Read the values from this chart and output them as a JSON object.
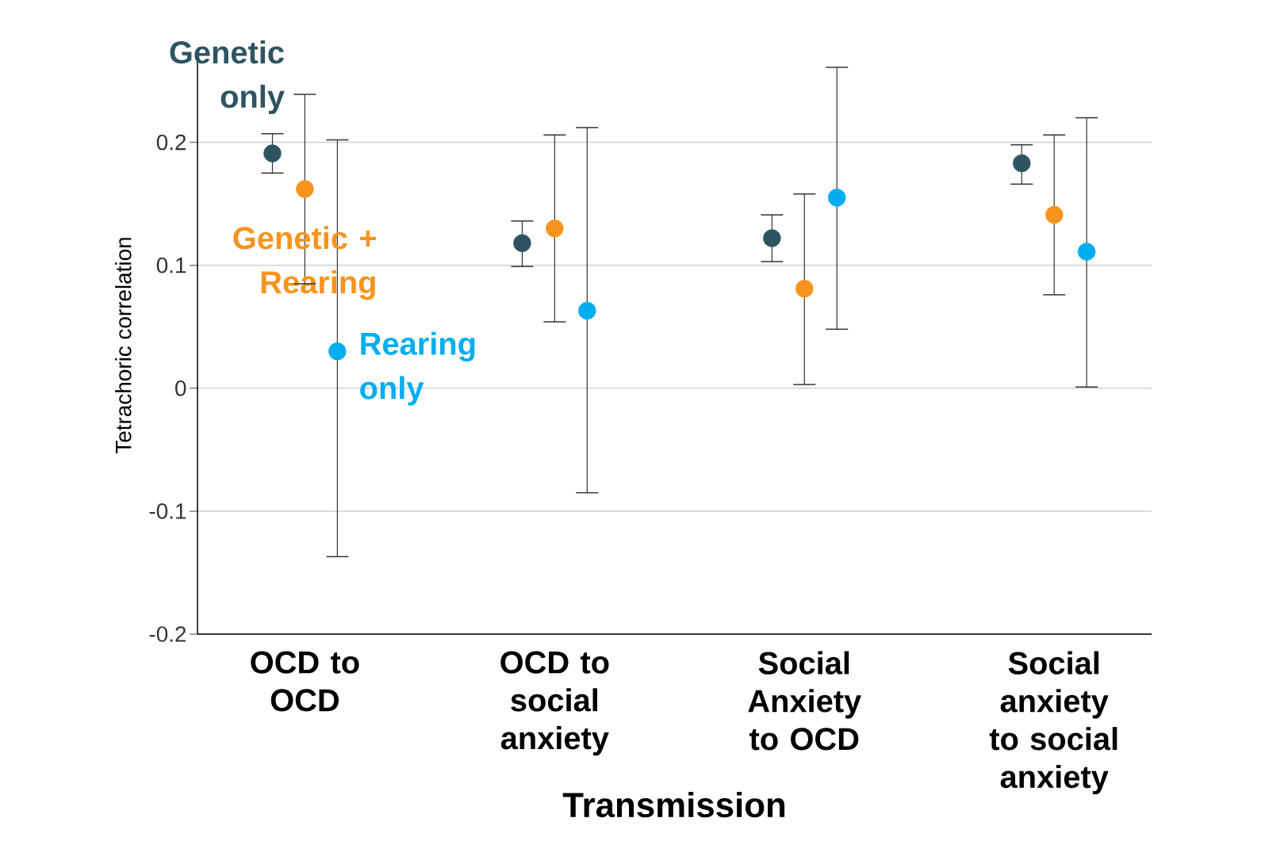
{
  "chart_data": {
    "type": "scatter",
    "xlabel": "Transmission",
    "ylabel": "Tetrachoric correlation",
    "categories": [
      "OCD to OCD",
      "OCD to social anxiety",
      "Social Anxiety to OCD",
      "Social anxiety to social anxiety"
    ],
    "series": [
      {
        "name": "Genetic only",
        "color": "#2e5461",
        "values": [
          0.191,
          0.118,
          0.122,
          0.183
        ],
        "errors": [
          [
            0.175,
            0.207
          ],
          [
            0.099,
            0.136
          ],
          [
            0.103,
            0.141
          ],
          [
            0.166,
            0.198
          ]
        ]
      },
      {
        "name": "Genetic + Rearing",
        "color": "#f7941d",
        "values": [
          0.162,
          0.13,
          0.081,
          0.141
        ],
        "errors": [
          [
            0.085,
            0.239
          ],
          [
            0.054,
            0.206
          ],
          [
            0.003,
            0.158
          ],
          [
            0.076,
            0.206
          ]
        ]
      },
      {
        "name": "Rearing only",
        "color": "#00aeef",
        "values": [
          0.03,
          0.063,
          0.155,
          0.111
        ],
        "errors": [
          [
            -0.137,
            0.202
          ],
          [
            -0.085,
            0.212
          ],
          [
            0.048,
            0.261
          ],
          [
            0.001,
            0.22
          ]
        ]
      }
    ],
    "ylim": [
      -0.2,
      0.27
    ],
    "yticks": [
      -0.2,
      -0.1,
      0,
      0.1,
      0.2
    ],
    "grid": "y",
    "legend": "left",
    "marker": "circle"
  }
}
